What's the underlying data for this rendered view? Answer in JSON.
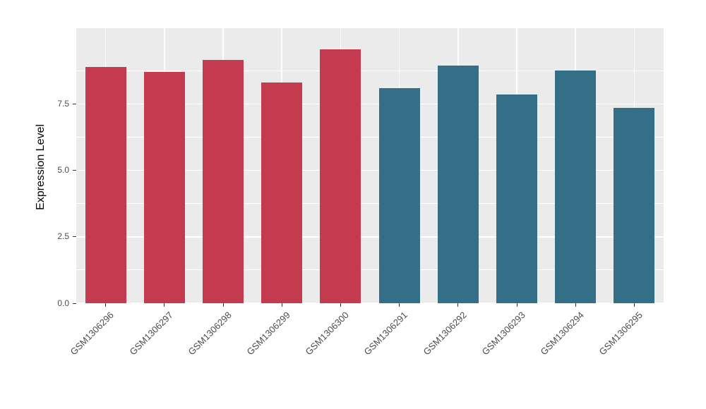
{
  "figure": {
    "background": "#FFFFFF",
    "panel_background": "#EBEBEB",
    "grid_major_color": "#FFFFFF",
    "grid_minor_color": "#FFFFFF",
    "tick_color": "#333333",
    "tick_label_color": "#4D4D4D",
    "axis_title_color": "#000000",
    "group1_color": "#C43B4F",
    "group2_color": "#336F87"
  },
  "chart_data": {
    "type": "bar",
    "title": "",
    "xlabel": "",
    "ylabel": "Expression Level",
    "categories": [
      "GSM1306296",
      "GSM1306297",
      "GSM1306298",
      "GSM1306299",
      "GSM1306300",
      "GSM1306291",
      "GSM1306292",
      "GSM1306293",
      "GSM1306294",
      "GSM1306295"
    ],
    "values": [
      8.9,
      8.7,
      9.15,
      8.3,
      9.55,
      8.1,
      8.95,
      7.85,
      8.75,
      7.35
    ],
    "bar_colors": [
      "#C43B4F",
      "#C43B4F",
      "#C43B4F",
      "#C43B4F",
      "#C43B4F",
      "#336F87",
      "#336F87",
      "#336F87",
      "#336F87",
      "#336F87"
    ],
    "ylim": [
      0,
      10.35
    ],
    "yticks": {
      "values": [
        0,
        2.5,
        5,
        7.5
      ],
      "labels": [
        "0.0",
        "2.5",
        "5.0",
        "7.5"
      ]
    },
    "minor_ticks": [
      1.25,
      3.75,
      6.25,
      8.75
    ],
    "grid": true,
    "legend_position": "none",
    "bar_width_fraction": 0.7
  }
}
